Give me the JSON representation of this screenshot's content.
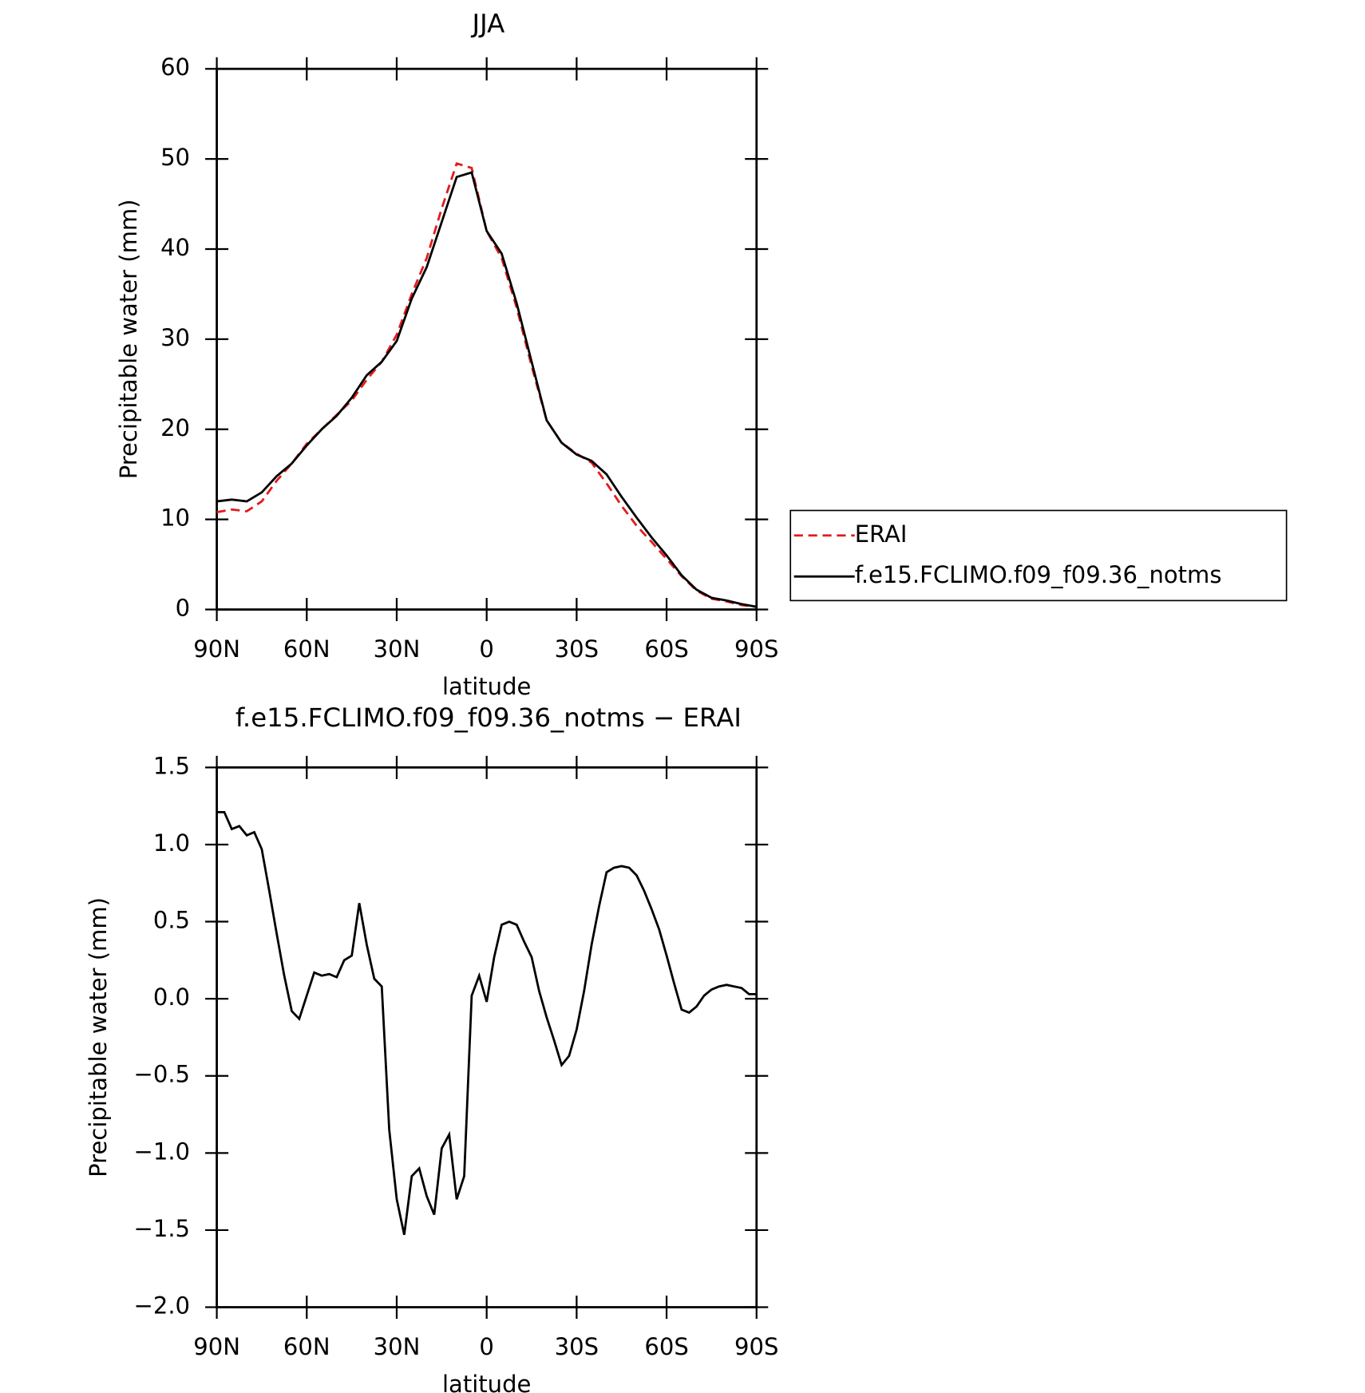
{
  "chart_data": [
    {
      "type": "line",
      "title": "JJA",
      "xlabel": "latitude",
      "ylabel": "Precipitable water (mm)",
      "x": [
        90,
        85,
        80,
        75,
        70,
        65,
        60,
        55,
        50,
        45,
        40,
        35,
        30,
        25,
        20,
        15,
        10,
        5,
        0,
        -5,
        -10,
        -15,
        -20,
        -25,
        -30,
        -35,
        -40,
        -45,
        -50,
        -55,
        -60,
        -65,
        -70,
        -75,
        -80,
        -85,
        -90
      ],
      "series": [
        {
          "name": "ERAI",
          "color": "#e41a1c",
          "line_style": "dashed",
          "values": [
            10.8,
            11.1,
            10.9,
            12.0,
            14.3,
            16.2,
            18.4,
            20.0,
            21.6,
            23.2,
            25.5,
            27.5,
            30.5,
            35.0,
            39.0,
            44.5,
            49.5,
            49.0,
            42.0,
            39.0,
            33.5,
            27.0,
            21.0,
            18.5,
            17.3,
            16.3,
            14.0,
            11.5,
            9.3,
            7.5,
            5.6,
            3.7,
            2.1,
            1.2,
            0.9,
            0.5,
            0.3
          ]
        },
        {
          "name": "f.e15.FCLIMO.f09_f09.36_notms",
          "color": "#000000",
          "line_style": "solid",
          "values": [
            12.0,
            12.2,
            12.0,
            13.0,
            14.8,
            16.2,
            18.2,
            20.0,
            21.5,
            23.5,
            26.0,
            27.5,
            29.8,
            34.5,
            38.0,
            43.0,
            48.0,
            48.5,
            42.0,
            39.5,
            34.0,
            27.5,
            21.0,
            18.5,
            17.2,
            16.5,
            15.0,
            12.5,
            10.2,
            8.0,
            6.0,
            3.8,
            2.2,
            1.3,
            1.0,
            0.6,
            0.3
          ]
        }
      ],
      "xlim": [
        90,
        -90
      ],
      "xticks": [
        {
          "value": 90,
          "label": "90N"
        },
        {
          "value": 60,
          "label": "60N"
        },
        {
          "value": 30,
          "label": "30N"
        },
        0,
        {
          "value": -30,
          "label": "30S"
        },
        {
          "value": -60,
          "label": "60S"
        },
        {
          "value": -90,
          "label": "90S"
        }
      ],
      "ylim": [
        0,
        60
      ],
      "yticks": [
        0,
        10,
        20,
        30,
        40,
        50,
        60
      ],
      "legend": "outside right"
    },
    {
      "type": "line",
      "title": "f.e15.FCLIMO.f09_f09.36_notms − ERAI",
      "xlabel": "latitude",
      "ylabel": "Precipitable water (mm)",
      "x": [
        90,
        87.5,
        85,
        82.5,
        80,
        77.5,
        75,
        72.5,
        70,
        67.5,
        65,
        62.5,
        60,
        57.5,
        55,
        52.5,
        50,
        47.5,
        45,
        42.5,
        40,
        37.5,
        35,
        32.5,
        30,
        27.5,
        25,
        22.5,
        20,
        17.5,
        15,
        12.5,
        10,
        7.5,
        5,
        2.5,
        0,
        -2.5,
        -5,
        -7.5,
        -10,
        -12.5,
        -15,
        -17.5,
        -20,
        -22.5,
        -25,
        -27.5,
        -30,
        -32.5,
        -35,
        -37.5,
        -40,
        -42.5,
        -45,
        -47.5,
        -50,
        -52.5,
        -55,
        -57.5,
        -60,
        -62.5,
        -65,
        -67.5,
        -70,
        -72.5,
        -75,
        -77.5,
        -80,
        -82.5,
        -85,
        -87.5,
        -90
      ],
      "series": [
        {
          "name": "f.e15.FCLIMO.f09_f09.36_notms - ERAI",
          "color": "#000000",
          "line_style": "solid",
          "values": [
            1.21,
            1.21,
            1.1,
            1.12,
            1.06,
            1.08,
            0.97,
            0.7,
            0.42,
            0.15,
            -0.08,
            -0.13,
            0.02,
            0.17,
            0.15,
            0.16,
            0.14,
            0.25,
            0.28,
            0.62,
            0.35,
            0.13,
            0.08,
            -0.85,
            -1.3,
            -1.53,
            -1.15,
            -1.1,
            -1.28,
            -1.4,
            -0.97,
            -0.88,
            -1.3,
            -1.15,
            0.02,
            0.15,
            -0.02,
            0.27,
            0.48,
            0.5,
            0.48,
            0.37,
            0.27,
            0.05,
            -0.12,
            -0.27,
            -0.43,
            -0.37,
            -0.2,
            0.05,
            0.35,
            0.6,
            0.82,
            0.85,
            0.86,
            0.85,
            0.8,
            0.7,
            0.58,
            0.45,
            0.28,
            0.1,
            -0.07,
            -0.09,
            -0.05,
            0.02,
            0.06,
            0.08,
            0.09,
            0.08,
            0.07,
            0.03,
            0.03
          ]
        }
      ],
      "xlim": [
        90,
        -90
      ],
      "xticks": [
        {
          "value": 90,
          "label": "90N"
        },
        {
          "value": 60,
          "label": "60N"
        },
        {
          "value": 30,
          "label": "30N"
        },
        0,
        {
          "value": -30,
          "label": "30S"
        },
        {
          "value": -60,
          "label": "60S"
        },
        {
          "value": -90,
          "label": "90S"
        }
      ],
      "ylim": [
        -2.0,
        1.5
      ],
      "yticks": [
        {
          "value": -2.0,
          "label": "−2.0"
        },
        {
          "value": -1.5,
          "label": "−1.5"
        },
        {
          "value": -1.0,
          "label": "−1.0"
        },
        {
          "value": -0.5,
          "label": "−0.5"
        },
        {
          "value": 0.0,
          "label": "0.0"
        },
        {
          "value": 0.5,
          "label": "0.5"
        },
        {
          "value": 1.0,
          "label": "1.0"
        },
        1.5
      ]
    }
  ]
}
